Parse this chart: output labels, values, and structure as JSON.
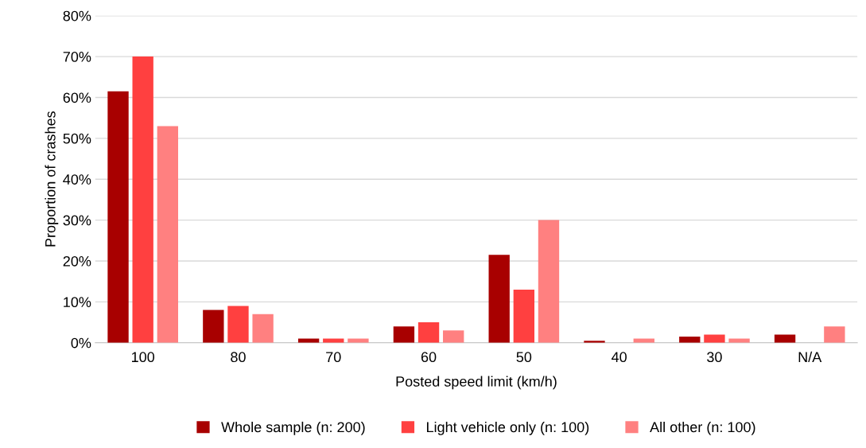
{
  "chart_data": {
    "type": "bar",
    "xlabel": "Posted speed limit (km/h)",
    "ylabel": "Proportion of crashes",
    "categories": [
      "100",
      "80",
      "70",
      "60",
      "50",
      "40",
      "30",
      "N/A"
    ],
    "series": [
      {
        "name": "Whole sample (n: 200)",
        "color": "#a80000",
        "values": [
          61.5,
          8,
          1,
          4,
          21.5,
          0.5,
          1.5,
          2
        ]
      },
      {
        "name": "Light vehicle only (n: 100)",
        "color": "#ff4040",
        "values": [
          70,
          9,
          1,
          5,
          13,
          0,
          2,
          0
        ]
      },
      {
        "name": "All other (n: 100)",
        "color": "#ff8080",
        "values": [
          53,
          7,
          1,
          3,
          30,
          1,
          1,
          4
        ]
      }
    ],
    "ylim": [
      0,
      80
    ],
    "yticks": [
      {
        "value": 0,
        "label": "0%"
      },
      {
        "value": 10,
        "label": "10%"
      },
      {
        "value": 20,
        "label": "20%"
      },
      {
        "value": 30,
        "label": "30%"
      },
      {
        "value": 40,
        "label": "40%"
      },
      {
        "value": 50,
        "label": "50%"
      },
      {
        "value": 60,
        "label": "60%"
      },
      {
        "value": 70,
        "label": "70%"
      },
      {
        "value": 80,
        "label": "80%"
      }
    ],
    "grid": "y",
    "legend": "bottom"
  }
}
